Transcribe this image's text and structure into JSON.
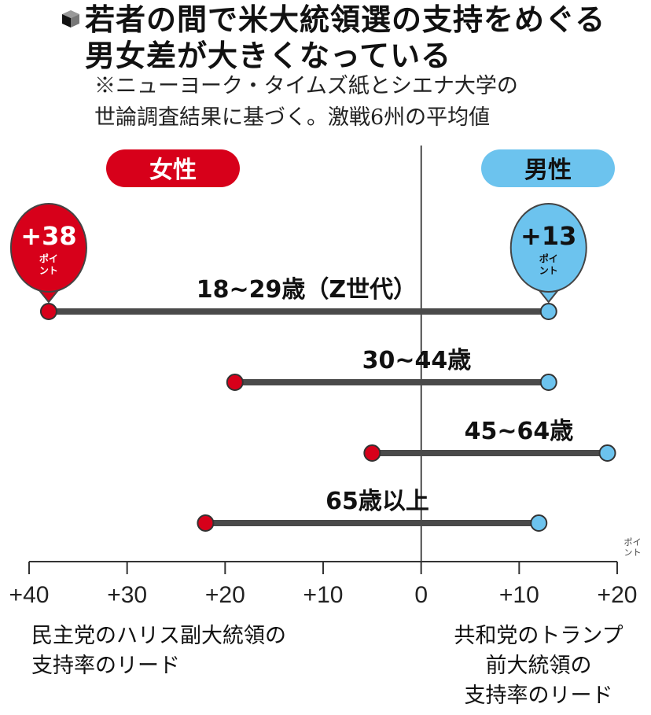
{
  "header": {
    "title_line1": "若者の間で米大統領選の支持をめぐる",
    "title_line2": "男女差が大きくなっている",
    "note_line1": "※ニューヨーク・タイムズ紙とシエナ大学の",
    "note_line2": "世論調査結果に基づく。激戦6州の平均値",
    "icon": "cube-icon"
  },
  "footer": {
    "left_line1": "民主党のハリス副大統領の",
    "left_line2": "支持率のリード",
    "right_line1": "共和党のトランプ",
    "right_line2": "前大統領の",
    "right_line3": "支持率のリード"
  },
  "chart_data": {
    "type": "dumbbell",
    "title": "若者の間で米大統領選の支持をめぐる男女差が大きくなっている",
    "legend": [
      {
        "name": "女性",
        "color": "#d7001a"
      },
      {
        "name": "男性",
        "color": "#6cc3ee"
      }
    ],
    "xlim": [
      -40,
      20
    ],
    "xticks": [
      -40,
      -30,
      -20,
      -10,
      0,
      10,
      20
    ],
    "xtick_labels": [
      "+40",
      "+30",
      "+20",
      "+10",
      "0",
      "+10",
      "+20"
    ],
    "x_unit": "ポイント",
    "xlabel_left": "民主党のハリス副大統領の支持率のリード",
    "xlabel_right": "共和党のトランプ前大統領の支持率のリード",
    "rows": [
      {
        "label": "18~29歳（Z世代）",
        "women": -38,
        "men": 13
      },
      {
        "label": "30~44歳",
        "women": -19,
        "men": 13
      },
      {
        "label": "45~64歳",
        "women": -5,
        "men": 19
      },
      {
        "label": "65歳以上",
        "women": -22,
        "men": 12
      }
    ],
    "callouts": [
      {
        "series": "女性",
        "row": 0,
        "value_label": "+38",
        "unit": "ポイント"
      },
      {
        "series": "男性",
        "row": 0,
        "value_label": "+13",
        "unit": "ポイント"
      }
    ]
  }
}
